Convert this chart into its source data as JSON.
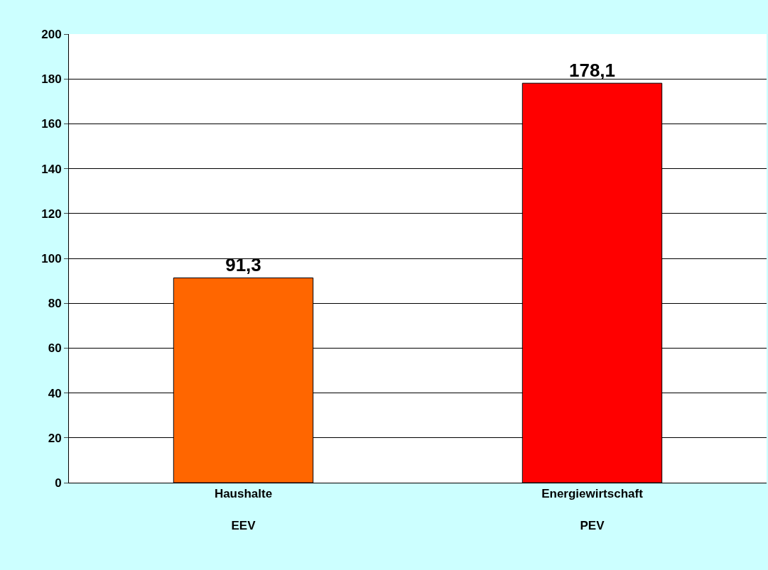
{
  "chart_data": {
    "type": "bar",
    "categories": [
      "Haushalte\nEEV",
      "Energiewirtschaft\nPEV"
    ],
    "values": [
      91.3,
      178.1
    ],
    "colors": [
      "#ff6600",
      "#ff0000"
    ],
    "value_labels": [
      "91,3",
      "178,1"
    ],
    "ylim": [
      0,
      200
    ],
    "yticks": [
      0,
      20,
      40,
      60,
      80,
      100,
      120,
      140,
      160,
      180,
      200
    ],
    "grid": "y",
    "legend": false
  }
}
